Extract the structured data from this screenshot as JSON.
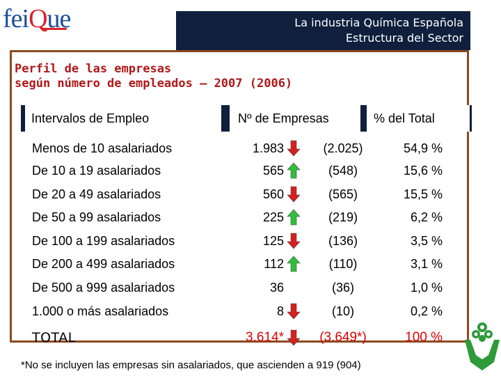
{
  "logo": {
    "text_a": "fei",
    "text_b": "Q",
    "text_c": "ue"
  },
  "header": {
    "line1": "La industria Química Española",
    "line2": "Estructura del Sector"
  },
  "subtitle": {
    "line1": "Perfil de las empresas",
    "line2": "según número de empleados – 2007 (2006)"
  },
  "table": {
    "headers": [
      "Intervalos de Empleo",
      "Nº de Empresas",
      "% del Total"
    ],
    "rows": [
      {
        "label": "Menos de 10 asalariados",
        "count": "1.983",
        "prev": "(2.025)",
        "pct": "54,9 %",
        "trend": "down"
      },
      {
        "label": "De 10 a 19 asalariados",
        "count": "565",
        "prev": "(548)",
        "pct": "15,6 %",
        "trend": "up"
      },
      {
        "label": "De 20 a 49 asalariados",
        "count": "560",
        "prev": "(565)",
        "pct": "15,5 %",
        "trend": "down"
      },
      {
        "label": "De 50 a 99 asalariados",
        "count": "225",
        "prev": "(219)",
        "pct": "6,2 %",
        "trend": "up"
      },
      {
        "label": "De 100 a 199 asalariados",
        "count": "125",
        "prev": "(136)",
        "pct": "3,5 %",
        "trend": "down"
      },
      {
        "label": "De 200 a 499 asalariados",
        "count": "112",
        "prev": "(110)",
        "pct": "3,1 %",
        "trend": "up"
      },
      {
        "label": "De 500 a 999 asalariados",
        "count": "36",
        "prev": "(36)",
        "pct": "1,0 %",
        "trend": "none"
      },
      {
        "label": "1.000 o más asalariados",
        "count": "8",
        "prev": "(10)",
        "pct": "0,2 %",
        "trend": "down"
      }
    ],
    "total": {
      "label": "TOTAL",
      "count": "3.614*",
      "prev": "(3.649*)",
      "pct": "100 %",
      "trend": "down"
    }
  },
  "footnote": "*No se incluyen las empresas sin asalariados, que ascienden a 919 (904)",
  "colors": {
    "up_arrow": "#2fbf3a",
    "down_arrow": "#d81e1e",
    "header_bg": "#0f1f3d",
    "subtitle": "#b01818",
    "frame": "#8b4a22",
    "total_values": "#d90000"
  },
  "icons": {
    "up": "arrow-up-icon",
    "down": "arrow-down-icon",
    "emblem": "responsible-care-emblem-icon"
  }
}
